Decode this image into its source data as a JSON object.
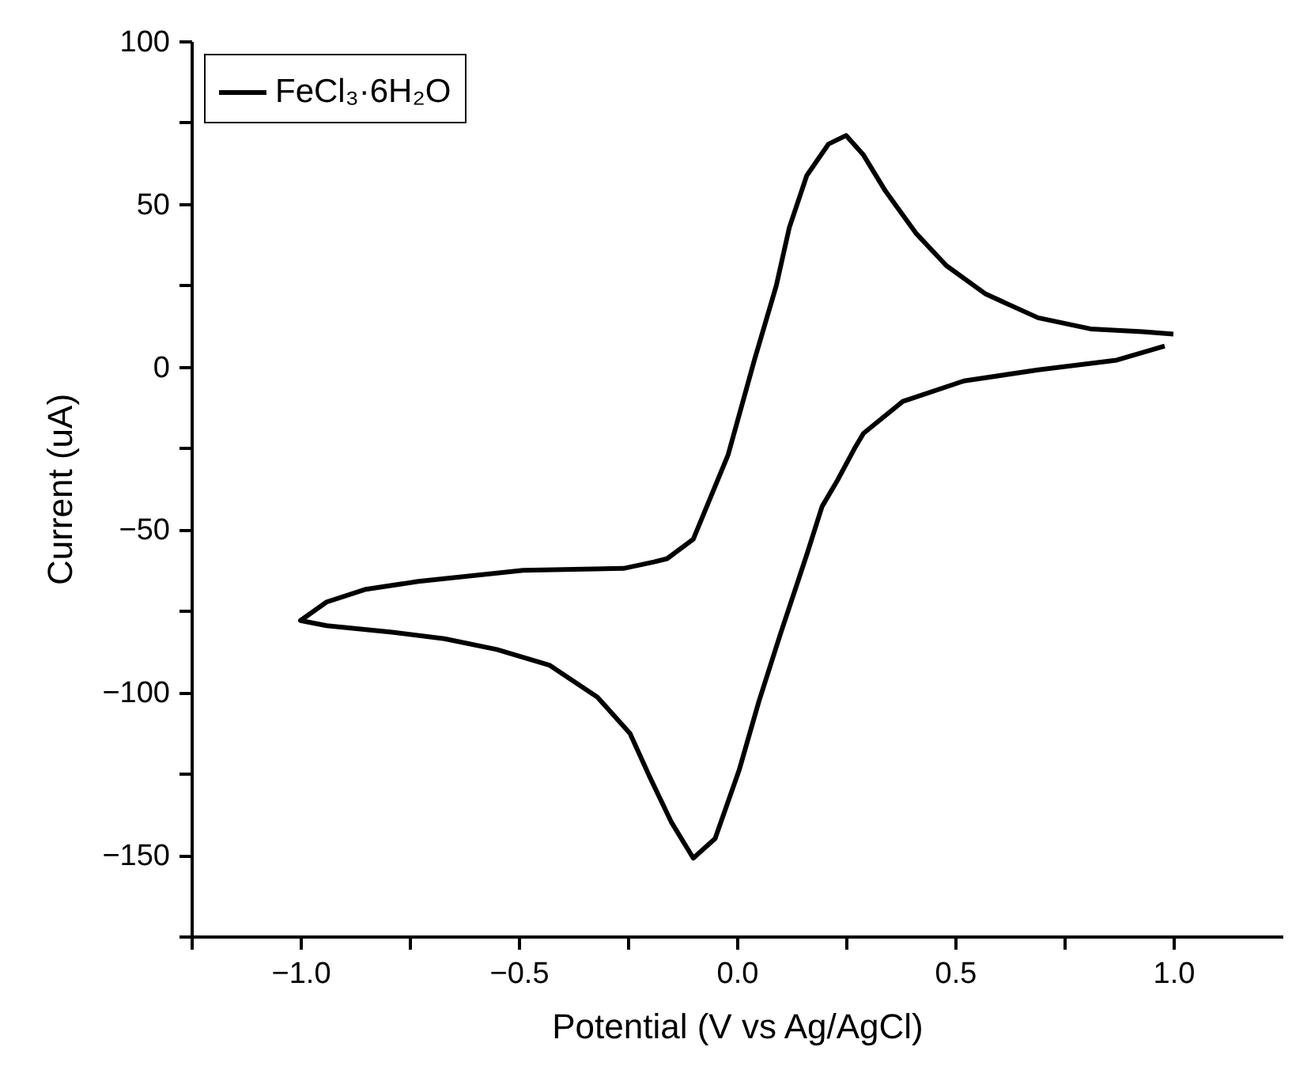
{
  "chart_data": {
    "type": "line",
    "xlabel": "Potential (V vs Ag/AgCl)",
    "ylabel": "Current (uA)",
    "xlim": [
      -1.25,
      1.25
    ],
    "xticks": [
      {
        "value": -1.25,
        "label": null
      },
      {
        "value": -1,
        "label": "−1.0"
      },
      {
        "value": -0.75,
        "label": null
      },
      {
        "value": -0.5,
        "label": "−0.5"
      },
      {
        "value": -0.25,
        "label": null
      },
      {
        "value": 0,
        "label": "0.0"
      },
      {
        "value": 0.25,
        "label": null
      },
      {
        "value": 0.5,
        "label": "0.5"
      },
      {
        "value": 0.75,
        "label": null
      },
      {
        "value": 1,
        "label": "1.0"
      }
    ],
    "ylim": [
      -175,
      100
    ],
    "yticks": [
      {
        "value": -175,
        "label": null
      },
      {
        "value": -150,
        "label": "−150"
      },
      {
        "value": -125,
        "label": null
      },
      {
        "value": -100,
        "label": "−100"
      },
      {
        "value": -75,
        "label": null
      },
      {
        "value": -50,
        "label": "−50"
      },
      {
        "value": -25,
        "label": null
      },
      0,
      {
        "value": 25,
        "label": null
      },
      50,
      {
        "value": 75,
        "label": null
      },
      100
    ],
    "grid": false,
    "legend": "top left",
    "line_style": "solid",
    "marker": "none",
    "series": [
      {
        "name": "FeCl₃·6H₂O",
        "color": "#000000",
        "x": [
          1.0,
          0.93,
          0.81,
          0.69,
          0.57,
          0.48,
          0.41,
          0.34,
          0.29,
          0.25,
          0.21,
          0.16,
          0.12,
          0.09,
          0.04,
          -0.02,
          -0.04,
          -0.1,
          -0.16,
          -0.19,
          -0.26,
          -0.49,
          -0.73,
          -0.85,
          -0.94,
          -1.0,
          -0.94,
          -0.79,
          -0.67,
          -0.55,
          -0.43,
          -0.32,
          -0.245,
          -0.2,
          -0.15,
          -0.1,
          -0.05,
          0.005,
          0.05,
          0.1,
          0.16,
          0.195,
          0.23,
          0.27,
          0.29,
          0.38,
          0.52,
          0.69,
          0.87,
          0.98
        ],
        "values": [
          10,
          10.7,
          11.6,
          15,
          22.3,
          31,
          41,
          54,
          65,
          71,
          68.4,
          58.7,
          42.7,
          24.8,
          2,
          -27,
          -33.5,
          -53,
          -59,
          -60,
          -62,
          -62.6,
          -66,
          -68.4,
          -72.3,
          -78,
          -79.6,
          -81.6,
          -83.6,
          -86.9,
          -91.7,
          -101.5,
          -112.7,
          -126,
          -140,
          -151,
          -145,
          -124,
          -103,
          -82,
          -57.8,
          -43,
          -35,
          -25,
          -20.5,
          -10.7,
          -4.4,
          -1,
          2,
          6.3
        ]
      }
    ]
  }
}
